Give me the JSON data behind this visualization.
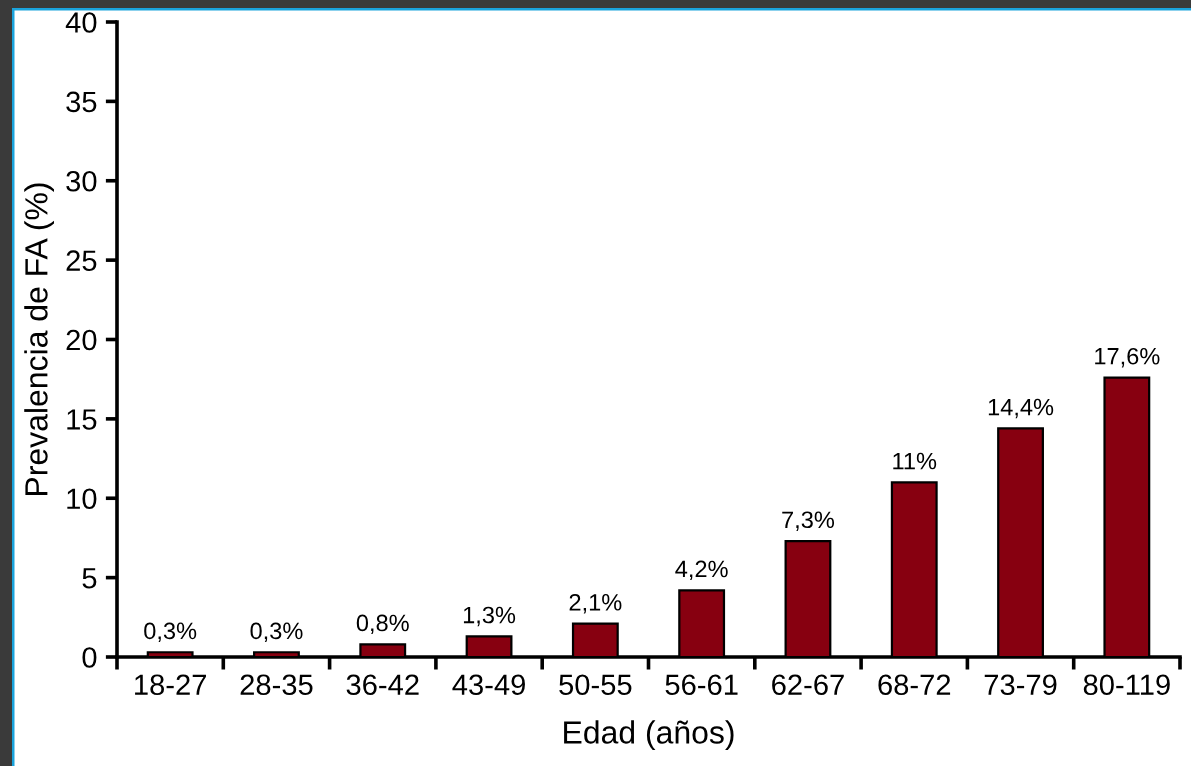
{
  "chart_data": {
    "type": "bar",
    "categories": [
      "18-27",
      "28-35",
      "36-42",
      "43-49",
      "50-55",
      "56-61",
      "62-67",
      "68-72",
      "73-79",
      "80-119"
    ],
    "values": [
      0.3,
      0.3,
      0.8,
      1.3,
      2.1,
      4.2,
      7.3,
      11,
      14.4,
      17.6
    ],
    "value_labels": [
      "0,3%",
      "0,3%",
      "0,8%",
      "1,3%",
      "2,1%",
      "4,2%",
      "7,3%",
      "11%",
      "14,4%",
      "17,6%"
    ],
    "color": "#870010",
    "xlabel": "Edad (años)",
    "ylabel": "Prevalencia de FA (%)",
    "ylim": [
      0,
      40
    ],
    "yticks": [
      0,
      5,
      10,
      15,
      20,
      25,
      30,
      35,
      40
    ],
    "grid": false
  }
}
